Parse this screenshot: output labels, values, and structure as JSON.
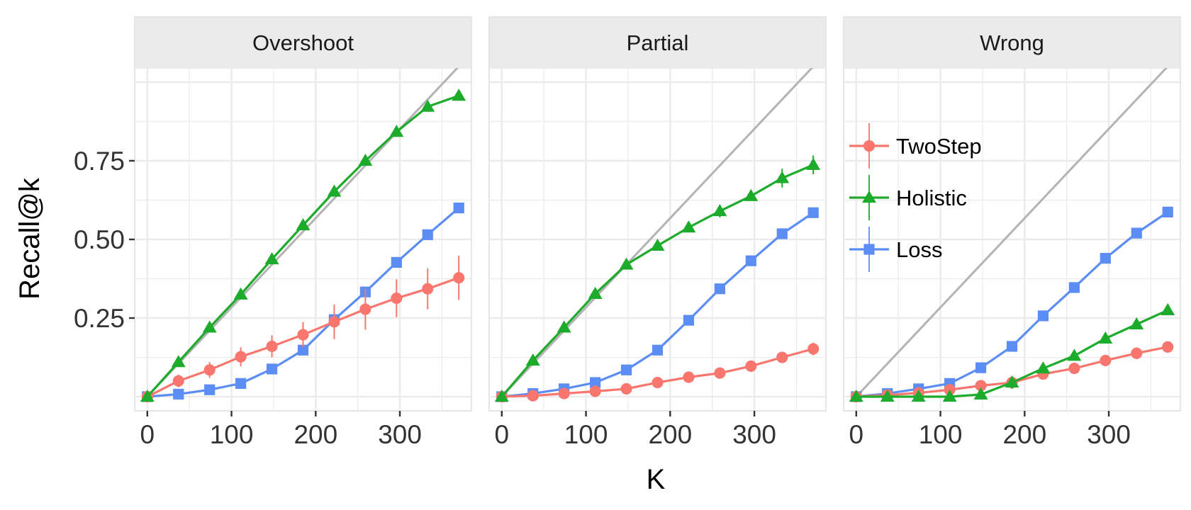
{
  "chart_data": {
    "type": "line",
    "xlabel": "K",
    "ylabel": "Recall@k",
    "xlim": [
      -15,
      385
    ],
    "ylim": [
      -0.045,
      1.045
    ],
    "x_ticks": [
      0,
      100,
      200,
      300
    ],
    "x_tick_labels": [
      "0",
      "100",
      "200",
      "300"
    ],
    "y_ticks": [
      0.25,
      0.5,
      0.75
    ],
    "y_tick_labels": [
      "0.25",
      "0.50",
      "0.75"
    ],
    "grid": true,
    "legend_position": "inside-left of Wrong panel",
    "x": [
      0,
      37,
      74,
      111,
      148,
      185,
      222,
      259,
      296,
      333,
      370
    ],
    "colors": {
      "TwoStep": "#F8766D",
      "Holistic": "#1DAB2B",
      "Loss": "#5C8DF5",
      "reference": "#b3b3b3",
      "strip": "#ebebeb",
      "grid": "#ebebeb"
    },
    "panels": [
      {
        "label": "Overshoot",
        "reference_line": {
          "x": [
            0,
            370
          ],
          "y": [
            0,
            1.05
          ]
        },
        "series": [
          {
            "name": "TwoStep",
            "marker": "circle",
            "values": [
              0.0,
              0.05,
              0.085,
              0.127,
              0.16,
              0.197,
              0.238,
              0.278,
              0.313,
              0.343,
              0.378
            ],
            "error": [
              0,
              0.02,
              0.025,
              0.03,
              0.035,
              0.04,
              0.055,
              0.065,
              0.06,
              0.065,
              0.07
            ]
          },
          {
            "name": "Holistic",
            "marker": "triangle",
            "values": [
              0.0,
              0.11,
              0.22,
              0.325,
              0.437,
              0.545,
              0.652,
              0.75,
              0.842,
              0.922,
              0.957
            ],
            "error": [
              0,
              0,
              0,
              0,
              0,
              0,
              0,
              0,
              0,
              0,
              0
            ]
          },
          {
            "name": "Loss",
            "marker": "square",
            "values": [
              0.0,
              0.008,
              0.022,
              0.042,
              0.088,
              0.148,
              0.245,
              0.333,
              0.427,
              0.515,
              0.6
            ],
            "error": [
              0,
              0,
              0,
              0,
              0,
              0,
              0,
              0,
              0,
              0,
              0
            ]
          }
        ]
      },
      {
        "label": "Partial",
        "reference_line": {
          "x": [
            0,
            370
          ],
          "y": [
            0,
            1.05
          ]
        },
        "series": [
          {
            "name": "TwoStep",
            "marker": "circle",
            "values": [
              0.0,
              0.003,
              0.01,
              0.017,
              0.025,
              0.045,
              0.062,
              0.075,
              0.097,
              0.125,
              0.152
            ],
            "error": [
              0,
              0,
              0,
              0,
              0,
              0,
              0,
              0,
              0,
              0.01,
              0.02
            ]
          },
          {
            "name": "Holistic",
            "marker": "triangle",
            "values": [
              0.0,
              0.115,
              0.22,
              0.327,
              0.42,
              0.48,
              0.538,
              0.59,
              0.638,
              0.695,
              0.737
            ],
            "error": [
              0,
              0,
              0,
              0,
              0,
              0,
              0,
              0.02,
              0.015,
              0.03,
              0.03
            ]
          },
          {
            "name": "Loss",
            "marker": "square",
            "values": [
              0.0,
              0.01,
              0.025,
              0.045,
              0.085,
              0.148,
              0.243,
              0.343,
              0.432,
              0.518,
              0.585
            ],
            "error": [
              0,
              0,
              0,
              0,
              0,
              0,
              0,
              0,
              0,
              0,
              0
            ]
          }
        ]
      },
      {
        "label": "Wrong",
        "reference_line": {
          "x": [
            0,
            370
          ],
          "y": [
            0,
            1.05
          ]
        },
        "series": [
          {
            "name": "TwoStep",
            "marker": "circle",
            "values": [
              0.0,
              0.005,
              0.012,
              0.022,
              0.035,
              0.045,
              0.072,
              0.09,
              0.115,
              0.138,
              0.158
            ],
            "error": [
              0,
              0,
              0,
              0,
              0,
              0,
              0,
              0,
              0,
              0,
              0
            ]
          },
          {
            "name": "Holistic",
            "marker": "triangle",
            "values": [
              0.0,
              0.0,
              0.0,
              0.0,
              0.007,
              0.045,
              0.09,
              0.13,
              0.185,
              0.23,
              0.275
            ],
            "error": [
              0,
              0,
              0,
              0,
              0,
              0.02,
              0,
              0,
              0,
              0,
              0
            ]
          },
          {
            "name": "Loss",
            "marker": "square",
            "values": [
              0.0,
              0.01,
              0.025,
              0.042,
              0.092,
              0.16,
              0.257,
              0.347,
              0.44,
              0.52,
              0.587
            ],
            "error": [
              0,
              0,
              0,
              0,
              0,
              0,
              0,
              0,
              0,
              0,
              0
            ]
          }
        ]
      }
    ],
    "legend": [
      {
        "name": "TwoStep",
        "marker": "circle"
      },
      {
        "name": "Holistic",
        "marker": "triangle"
      },
      {
        "name": "Loss",
        "marker": "square"
      }
    ]
  }
}
